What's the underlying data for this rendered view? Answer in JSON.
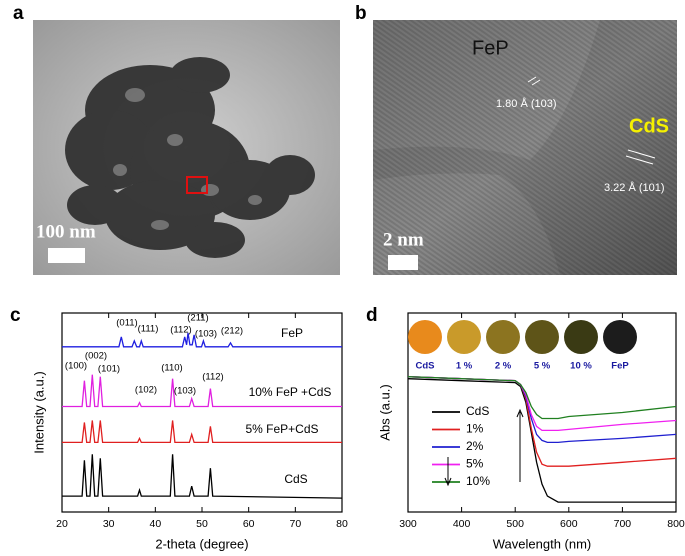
{
  "panels": [
    "a",
    "b",
    "c",
    "d"
  ],
  "image_a": {
    "scale_label": "100 nm"
  },
  "image_b": {
    "phase_1": "FeP",
    "spacing_1": "1.80 Å (103)",
    "phase_2": "CdS",
    "spacing_2": "3.22 Å (101)",
    "scale_label": "2 nm"
  },
  "chart_data": [
    {
      "type": "line",
      "xlabel": "2-theta (degree)",
      "ylabel": "Intensity (a.u.)",
      "xlim": [
        20,
        80
      ],
      "xticks": [
        20,
        30,
        40,
        50,
        60,
        70,
        80
      ],
      "ylim": [
        0,
        100
      ],
      "legend": "inline",
      "series": [
        {
          "name": "FeP",
          "color": "#1f1fe0",
          "x": [
            20,
            32.2,
            32.7,
            33.2,
            35,
            35.5,
            36,
            36.6,
            37,
            37.4,
            45.8,
            46.3,
            46.7,
            47,
            47.4,
            47.9,
            48.3,
            48.8,
            49.9,
            50.3,
            50.7,
            55.6,
            56.1,
            56.6,
            80
          ],
          "values": [
            83,
            83,
            88,
            83,
            83,
            86,
            83,
            83,
            86,
            83,
            83,
            88,
            84,
            90,
            84,
            84,
            89,
            83,
            83,
            86,
            83,
            83,
            85,
            83,
            83
          ]
        },
        {
          "name": "10% FeP +CdS",
          "color": "#e020e0",
          "x": [
            20,
            24.3,
            24.8,
            25.3,
            26,
            26.5,
            27,
            27.7,
            28.2,
            28.7,
            36.2,
            36.6,
            37,
            43.2,
            43.7,
            44.2,
            47.3,
            47.8,
            48.3,
            51.3,
            51.8,
            52.3,
            80
          ],
          "values": [
            53,
            53,
            66,
            53,
            53,
            69,
            53,
            53,
            68,
            53,
            53,
            55,
            53,
            53,
            67,
            53,
            53,
            57,
            53,
            53,
            62,
            53,
            53
          ]
        },
        {
          "name": "5% FeP+CdS",
          "color": "#e02020",
          "x": [
            20,
            24.3,
            24.8,
            25.3,
            26,
            26.5,
            27,
            27.7,
            28.2,
            28.7,
            36.2,
            36.6,
            37,
            43.2,
            43.7,
            44.2,
            47.3,
            47.8,
            48.3,
            51.3,
            51.8,
            52.3,
            80
          ],
          "values": [
            35,
            35,
            45,
            35,
            35,
            46,
            35,
            35,
            46,
            35,
            35,
            37,
            35,
            35,
            46,
            35,
            35,
            39,
            35,
            35,
            43,
            35,
            35
          ]
        },
        {
          "name": "CdS",
          "color": "#000000",
          "x": [
            20,
            24.3,
            24.8,
            25.3,
            26,
            26.5,
            27,
            27.7,
            28.2,
            28.7,
            36.2,
            36.6,
            37,
            43.2,
            43.7,
            44.2,
            47.3,
            47.8,
            48.3,
            51.3,
            51.8,
            52.3,
            80
          ],
          "values": [
            8,
            8,
            26,
            8,
            8,
            29,
            8,
            8,
            27,
            8,
            8,
            11,
            8,
            8,
            29,
            8,
            8,
            13,
            8,
            8,
            22,
            8,
            7
          ]
        }
      ],
      "annotations": [
        "(011)",
        "(111)",
        "(211)",
        "(112)",
        "(103)",
        "(212)",
        "(100)",
        "(002)",
        "(101)",
        "(110)",
        "(103)",
        "(112)",
        "(102)"
      ]
    },
    {
      "type": "line",
      "xlabel": "Wavelength (nm)",
      "ylabel": "Abs (a.u.)",
      "xlim": [
        300,
        800
      ],
      "xticks": [
        300,
        400,
        500,
        600,
        700,
        800
      ],
      "ylim": [
        0,
        100
      ],
      "legend": "lower left",
      "series": [
        {
          "name": "CdS",
          "color": "#000000",
          "x": [
            300,
            400,
            500,
            510,
            520,
            530,
            540,
            550,
            560,
            580,
            600,
            700,
            800
          ],
          "values": [
            67,
            66,
            65,
            63,
            55,
            40,
            25,
            14,
            8,
            5,
            5,
            5,
            5
          ]
        },
        {
          "name": "1%",
          "color": "#e02020",
          "x": [
            300,
            400,
            500,
            510,
            520,
            530,
            540,
            550,
            560,
            580,
            600,
            700,
            800
          ],
          "values": [
            68,
            67,
            66,
            64,
            57,
            42,
            30,
            24,
            23,
            23,
            23,
            25,
            27
          ]
        },
        {
          "name": "2%",
          "color": "#2020d0",
          "x": [
            300,
            400,
            500,
            510,
            520,
            530,
            540,
            550,
            560,
            580,
            600,
            700,
            800
          ],
          "values": [
            68,
            67,
            66,
            64,
            58,
            47,
            39,
            36,
            35,
            35,
            35.5,
            37,
            39
          ]
        },
        {
          "name": "5%",
          "color": "#f020f0",
          "x": [
            300,
            400,
            500,
            510,
            520,
            530,
            540,
            550,
            560,
            580,
            600,
            700,
            800
          ],
          "values": [
            68,
            67,
            66,
            64,
            59,
            49,
            43,
            41,
            41,
            41,
            41.5,
            44,
            46
          ]
        },
        {
          "name": "10%",
          "color": "#208020",
          "x": [
            300,
            400,
            500,
            510,
            520,
            530,
            540,
            550,
            560,
            580,
            600,
            700,
            800
          ],
          "values": [
            68,
            67,
            66,
            64,
            60,
            53,
            49,
            47,
            47,
            47,
            48,
            50,
            53
          ]
        }
      ],
      "swatches": [
        {
          "label": "CdS",
          "color": "#e88a1c"
        },
        {
          "label": "1 %",
          "color": "#c99a2a"
        },
        {
          "label": "2 %",
          "color": "#8c7420"
        },
        {
          "label": "5 %",
          "color": "#5e5418"
        },
        {
          "label": "10 %",
          "color": "#3a3a14"
        },
        {
          "label": "FeP",
          "color": "#1c1c1c"
        }
      ]
    }
  ]
}
